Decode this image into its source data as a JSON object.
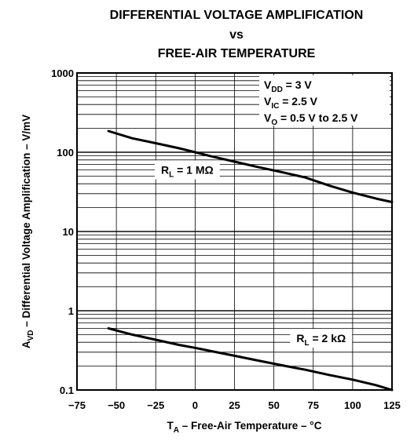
{
  "chart_data": {
    "type": "line",
    "title_lines": [
      "DIFFERENTIAL VOLTAGE AMPLIFICATION",
      "vs",
      "FREE-AIR TEMPERATURE"
    ],
    "xlabel": {
      "main": "T",
      "sub": "A",
      "rest": " – Free-Air Temperature  – °C"
    },
    "ylabel": {
      "main": "A",
      "sub": "VD",
      "rest": " – Differential Voltage Amplification – V/mV"
    },
    "x_ticks": [
      "−75",
      "−50",
      "−25",
      "0",
      "25",
      "50",
      "75",
      "100",
      "125"
    ],
    "y_ticks": [
      "0.1",
      "1",
      "10",
      "100",
      "1000"
    ],
    "xlim": [
      -75,
      125
    ],
    "ylim": [
      0.1,
      1000
    ],
    "y_scale": "log",
    "grid": true,
    "conditions": [
      {
        "main": "V",
        "sub": "DD",
        "rest": " = 3 V"
      },
      {
        "main": "V",
        "sub": "IC",
        "rest": " = 2.5 V"
      },
      {
        "main": "V",
        "sub": "O",
        "rest": " = 0.5 V to 2.5 V"
      }
    ],
    "series": [
      {
        "name": {
          "main": "R",
          "sub": "L",
          "rest": " = 1 MΩ"
        },
        "label_at": [
          -5,
          60
        ],
        "x": [
          -55,
          -40,
          -25,
          -10,
          0,
          10,
          25,
          40,
          55,
          70,
          85,
          100,
          115,
          125
        ],
        "y": [
          185,
          150,
          130,
          112,
          100,
          89,
          76,
          65,
          56,
          48,
          38,
          31,
          26,
          23.5
        ]
      },
      {
        "name": {
          "main": "R",
          "sub": "L",
          "rest": " = 2 kΩ"
        },
        "label_at": [
          80,
          0.45
        ],
        "x": [
          -55,
          -40,
          -25,
          -10,
          0,
          10,
          25,
          40,
          55,
          70,
          85,
          100,
          115,
          125
        ],
        "y": [
          0.6,
          0.5,
          0.43,
          0.37,
          0.34,
          0.31,
          0.27,
          0.235,
          0.205,
          0.18,
          0.155,
          0.135,
          0.115,
          0.1
        ]
      }
    ]
  }
}
